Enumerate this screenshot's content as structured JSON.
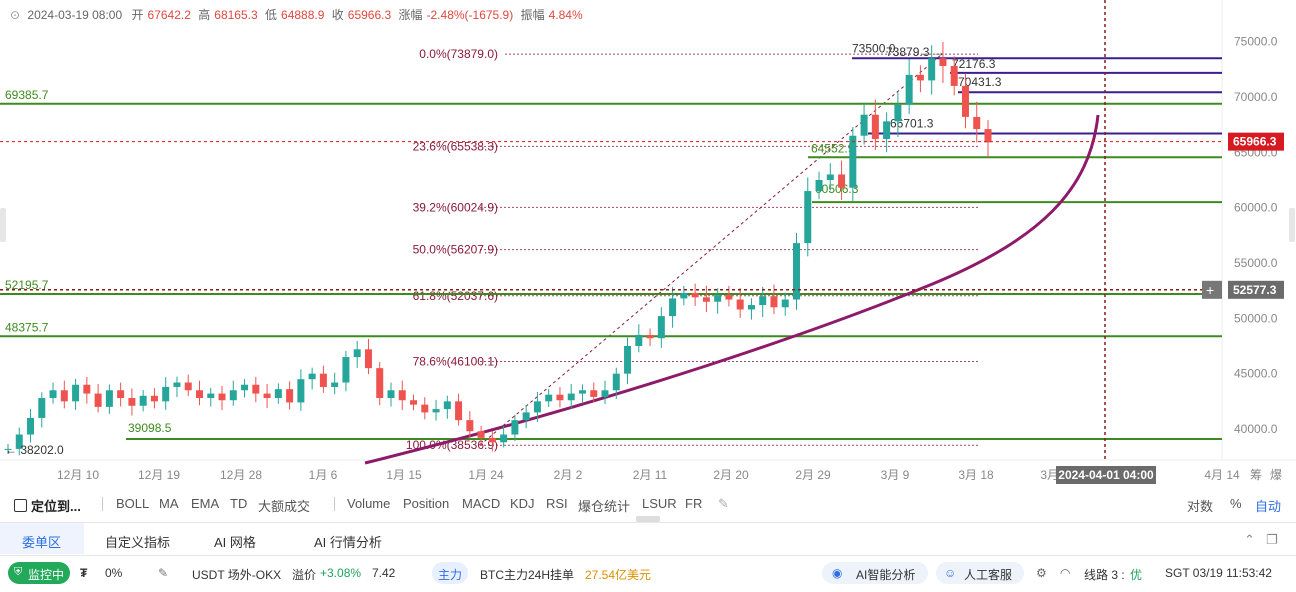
{
  "header": {
    "date": "2024-03-19 08:00",
    "open_label": "开",
    "open": "67642.2",
    "high_label": "高",
    "high": "68165.3",
    "low_label": "低",
    "low": "64888.9",
    "close_label": "收",
    "close": "65966.3",
    "change_label": "涨幅",
    "change": "-2.48%(-1675.9)",
    "amp_label": "振幅",
    "amp": "4.84%"
  },
  "chart_data": {
    "type": "candlestick",
    "symbol_price_scale": [
      40000,
      75000
    ],
    "y_ticks": [
      "75000.0",
      "70000.0",
      "65000.0",
      "60000.0",
      "55000.0",
      "50000.0",
      "45000.0",
      "40000.0"
    ],
    "x_ticks": [
      "12月 10",
      "12月 19",
      "12月 28",
      "1月 6",
      "1月 15",
      "1月 24",
      "2月 2",
      "2月 11",
      "2月 20",
      "2月 29",
      "3月 9",
      "3月 18",
      "3月 27",
      "4月 14"
    ],
    "current_price": "65966.3",
    "cursor_price": "52577.3",
    "cursor_time": "2024-04-01 04:00",
    "fibonacci": [
      {
        "label": "0.0%(73879.0)",
        "value": 73879.0
      },
      {
        "label": "23.6%(65538.3)",
        "value": 65538.3
      },
      {
        "label": "39.2%(60024.9)",
        "value": 60024.9
      },
      {
        "label": "50.0%(56207.9)",
        "value": 56207.9
      },
      {
        "label": "61.8%(52037.6)",
        "value": 52037.6
      },
      {
        "label": "78.6%(46100.1)",
        "value": 46100.1
      },
      {
        "label": "100.0%(38536.9)",
        "value": 38536.9
      }
    ],
    "support_lines": [
      {
        "label": "69385.7",
        "value": 69385.7
      },
      {
        "label": "64552.9",
        "value": 64552.9
      },
      {
        "label": "60506.3",
        "value": 60506.3
      },
      {
        "label": "52195.7",
        "value": 52195.7
      },
      {
        "label": "48375.7",
        "value": 48375.7
      },
      {
        "label": "39098.5",
        "value": 39098.5
      }
    ],
    "resistance_lines": [
      {
        "label": "73500.0",
        "value": 73500.0
      },
      {
        "label": "72176.3",
        "value": 72176.3
      },
      {
        "label": "70431.3",
        "value": 70431.3
      },
      {
        "label": "66701.3",
        "value": 66701.3
      }
    ],
    "annotations": [
      {
        "label": "73879.3",
        "value": 73879.3
      },
      {
        "label": "38202.0",
        "value": 38202.0
      }
    ],
    "prices": [
      38202,
      39500,
      41000,
      42800,
      43500,
      42500,
      44000,
      43200,
      42000,
      43500,
      42800,
      42100,
      43000,
      42500,
      43800,
      44200,
      43500,
      42800,
      43200,
      42600,
      43500,
      44000,
      43200,
      42800,
      43600,
      42400,
      44500,
      45000,
      43800,
      44200,
      46500,
      47200,
      45500,
      42800,
      43500,
      42600,
      42200,
      41500,
      41800,
      42500,
      40800,
      39800,
      39200,
      38800,
      39500,
      40800,
      41500,
      42500,
      43100,
      42600,
      43200,
      43500,
      42900,
      43500,
      45000,
      47500,
      48500,
      48200,
      50200,
      51800,
      52300,
      51900,
      51500,
      52100,
      51700,
      50800,
      51200,
      52000,
      51000,
      51700,
      56800,
      61500,
      62500,
      63000,
      61800,
      66500,
      68400,
      66200,
      67800,
      69300,
      72000,
      71500,
      73500,
      72800,
      71000,
      68200,
      67100,
      65900
    ]
  },
  "toolbar": {
    "locate": "定位到...",
    "items": [
      "BOLL",
      "MA",
      "EMA",
      "TD",
      "大额成交",
      "Volume",
      "Position",
      "MACD",
      "KDJ",
      "RSI",
      "爆仓统计",
      "LSUR",
      "FR"
    ],
    "log": "对数",
    "percent": "%",
    "auto": "自动"
  },
  "tabs": [
    "委单区",
    "自定义指标",
    "AI 网格",
    "AI 行情分析"
  ],
  "status": {
    "monitor": "监控中",
    "fee_rate": "0%",
    "otc": "USDT 场外-OKX",
    "premium_label": "溢价",
    "premium": "+3.08%",
    "otc_price": "7.42",
    "main_label": "主力",
    "main_text": "BTC主力24H挂单",
    "main_amount": "27.54亿美元",
    "ai_analysis": "AI智能分析",
    "support": "人工客服",
    "line_label": "线路 3 :",
    "line_quality": "优",
    "clock": "SGT 03/19 11:53:42"
  },
  "colors": {
    "up": "#26a69a",
    "down": "#ef5350",
    "support": "#3d8b1f",
    "resistance": "#3b1f8f",
    "curve": "#8e1a6a",
    "fib": "#8b1a3a",
    "price_tag": "#d71921"
  }
}
